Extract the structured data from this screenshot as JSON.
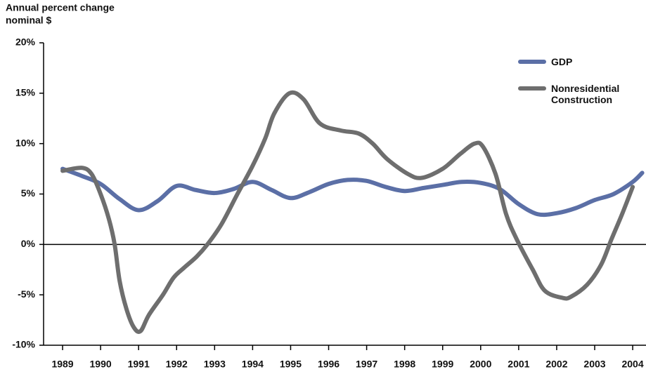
{
  "chart_data": {
    "type": "line",
    "title": "Annual percent change",
    "subtitle": "nominal $",
    "xlim": [
      1988.5,
      2004.35
    ],
    "xticks": [
      1989,
      1990,
      1991,
      1992,
      1993,
      1994,
      1995,
      1996,
      1997,
      1998,
      1999,
      2000,
      2001,
      2002,
      2003,
      2004
    ],
    "ylim": [
      -10,
      20
    ],
    "yticks": [
      {
        "value": -10,
        "label": "-10%"
      },
      {
        "value": -5,
        "label": "-5%"
      },
      {
        "value": 0,
        "label": "0%"
      },
      {
        "value": 5,
        "label": "5%"
      },
      {
        "value": 10,
        "label": "10%"
      },
      {
        "value": 15,
        "label": "15%"
      },
      {
        "value": 20,
        "label": "20%"
      }
    ],
    "legend": "top-right",
    "series": [
      {
        "name": "GDP",
        "color": "#5b6fa6",
        "x": [
          1989.0,
          1989.5,
          1990.0,
          1990.5,
          1991.0,
          1991.5,
          1992.0,
          1992.5,
          1993.0,
          1993.5,
          1994.0,
          1994.5,
          1995.0,
          1995.5,
          1996.0,
          1996.5,
          1997.0,
          1997.5,
          1998.0,
          1998.5,
          1999.0,
          1999.5,
          2000.0,
          2000.5,
          2001.0,
          2001.5,
          2002.0,
          2002.5,
          2003.0,
          2003.5,
          2004.0,
          2004.25
        ],
        "values": [
          7.5,
          6.8,
          6.0,
          4.5,
          3.4,
          4.3,
          5.8,
          5.4,
          5.1,
          5.5,
          6.2,
          5.4,
          4.6,
          5.2,
          6.0,
          6.4,
          6.3,
          5.7,
          5.3,
          5.6,
          5.9,
          6.2,
          6.1,
          5.5,
          4.0,
          3.0,
          3.1,
          3.6,
          4.4,
          5.0,
          6.2,
          7.1
        ]
      },
      {
        "name": "Nonresidential Construction",
        "color": "#6e6e6e",
        "x": [
          1989.0,
          1989.5,
          1989.76,
          1990.0,
          1990.22,
          1990.37,
          1990.5,
          1990.68,
          1990.87,
          1991.05,
          1991.27,
          1991.64,
          1991.92,
          1992.2,
          1992.53,
          1992.81,
          1993.18,
          1993.6,
          1994.0,
          1994.33,
          1994.57,
          1994.97,
          1995.34,
          1995.77,
          1996.32,
          1996.79,
          1997.16,
          1997.53,
          1998.08,
          1998.45,
          1999.0,
          1999.47,
          1999.84,
          2000.06,
          2000.39,
          2000.67,
          2000.95,
          2001.37,
          2001.69,
          2002.15,
          2002.37,
          2002.8,
          2003.17,
          2003.44,
          2003.72,
          2004.0
        ],
        "values": [
          7.3,
          7.6,
          7.0,
          5.0,
          2.5,
          0,
          -3.6,
          -6.4,
          -8.2,
          -8.6,
          -7.0,
          -5.0,
          -3.3,
          -2.3,
          -1.2,
          0,
          2.0,
          5.0,
          7.8,
          10.5,
          13.0,
          15.0,
          14.4,
          12.0,
          11.3,
          11.0,
          10.0,
          8.5,
          7.0,
          6.6,
          7.5,
          9.0,
          10.0,
          9.7,
          7.0,
          3.0,
          0.5,
          -2.5,
          -4.6,
          -5.3,
          -5.2,
          -4.0,
          -2.0,
          0.5,
          3.0,
          5.7
        ]
      }
    ]
  }
}
